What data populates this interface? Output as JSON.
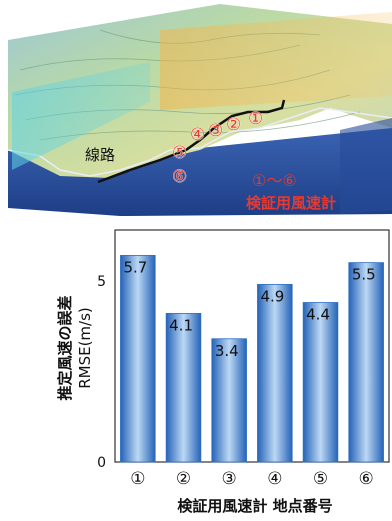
{
  "map": {
    "line_label": "線路",
    "markers": [
      "①",
      "②",
      "③",
      "④",
      "⑤",
      "⑥"
    ],
    "legend_line1": "①～⑥",
    "legend_line2": "検証用風速計",
    "colors": {
      "marker": "#e8392f",
      "line": "#111111",
      "sea": "#2a4f9e"
    }
  },
  "chart_data": {
    "type": "bar",
    "categories": [
      "①",
      "②",
      "③",
      "④",
      "⑤",
      "⑥"
    ],
    "values": [
      5.7,
      4.1,
      3.4,
      4.9,
      4.4,
      5.5
    ],
    "value_labels": [
      "5.7",
      "4.1",
      "3.4",
      "4.9",
      "4.4",
      "5.5"
    ],
    "ylabel_line1": "推定風速の誤差",
    "ylabel_line2": "RMSE(m/s)",
    "xlabel": "検証用風速計  地点番号",
    "yticks": [
      "0",
      "5"
    ],
    "ytick_values": [
      0,
      5
    ],
    "ylim": [
      0,
      6.4
    ],
    "grid": false,
    "bar_color": "#2e6fc4"
  }
}
